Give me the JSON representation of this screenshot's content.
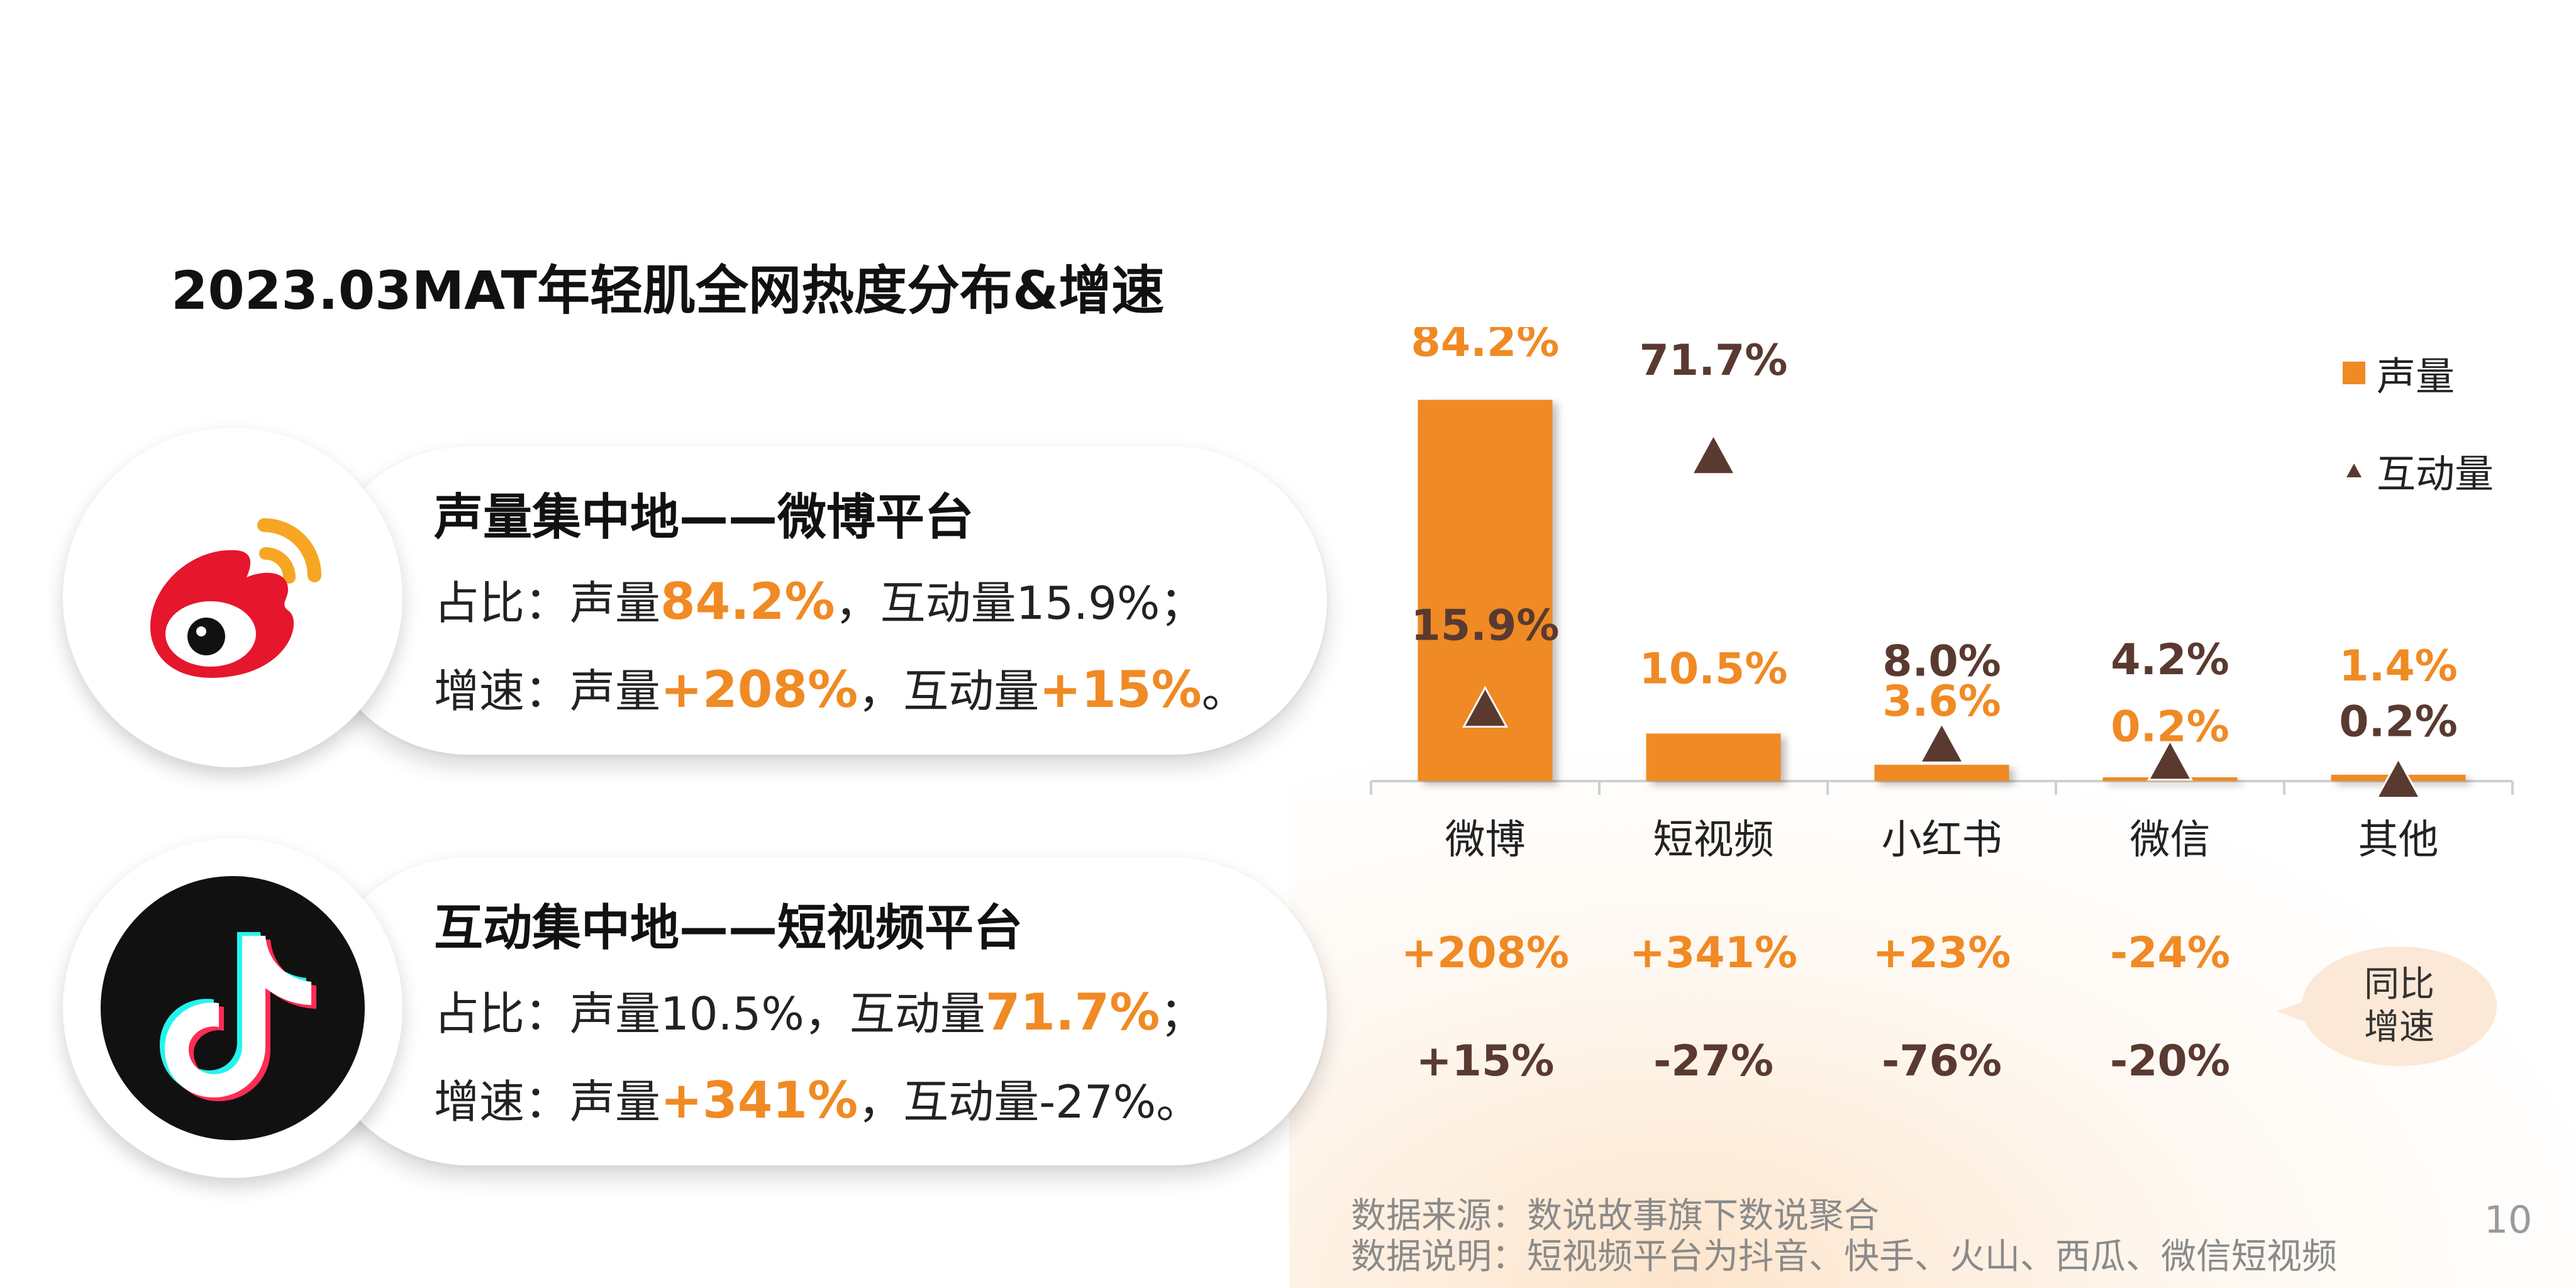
{
  "title": "2023.03MAT年轻肌全网热度分布&增速",
  "cards": [
    {
      "heading": "声量集中地——微博平台",
      "line1": {
        "prefix": "占比：声量",
        "hl1": "84.2%",
        "mid": "，互动量15.9%；",
        "hl2": "",
        "suffix": ""
      },
      "line2": {
        "prefix": "增速：声量",
        "hl1": "+208%",
        "mid": "，互动量",
        "hl2": "+15%",
        "suffix": "。"
      },
      "logo": "weibo-logo"
    },
    {
      "heading": "互动集中地——短视频平台",
      "line1": {
        "prefix": "占比：声量10.5%，互动量",
        "hl1": "71.7%",
        "mid": "；",
        "hl2": "",
        "suffix": ""
      },
      "line2": {
        "prefix": "增速：声量",
        "hl1": "+341%",
        "mid": "，互动量-27%。",
        "hl2": "",
        "suffix": ""
      },
      "logo": "douyin-logo"
    }
  ],
  "chart_data": {
    "type": "bar",
    "categories": [
      "微博",
      "短视频",
      "小红书",
      "微信",
      "其他"
    ],
    "series": [
      {
        "name": "声量",
        "type": "bar",
        "values": [
          84.2,
          10.5,
          3.6,
          0.2,
          1.4
        ],
        "labels": [
          "84.2%",
          "10.5%",
          "3.6%",
          "0.2%",
          "1.4%"
        ],
        "color": "#f08a24"
      },
      {
        "name": "互动量",
        "type": "marker-triangle",
        "values": [
          15.9,
          71.7,
          8.0,
          4.2,
          0.2
        ],
        "labels": [
          "15.9%",
          "71.7%",
          "8.0%",
          "4.2%",
          "0.2%"
        ],
        "color": "#5a3a30"
      }
    ],
    "growth": {
      "label": "同比增速",
      "label_lines": [
        "同比",
        "增速"
      ],
      "sound_volume": [
        "+208%",
        "+341%",
        "+23%",
        "-24%",
        ""
      ],
      "interaction": [
        "+15%",
        "-27%",
        "-76%",
        "-20%",
        ""
      ]
    },
    "ylim": [
      0,
      100
    ],
    "legend_position": "top-right"
  },
  "footer": {
    "source": "数据来源：数说故事旗下数说聚合",
    "note": "数据说明：短视频平台为抖音、快手、火山、西瓜、微信短视频"
  },
  "page_number": "10",
  "colors": {
    "accent": "#f08a24",
    "dark": "#5a3a30",
    "text": "#222222"
  }
}
